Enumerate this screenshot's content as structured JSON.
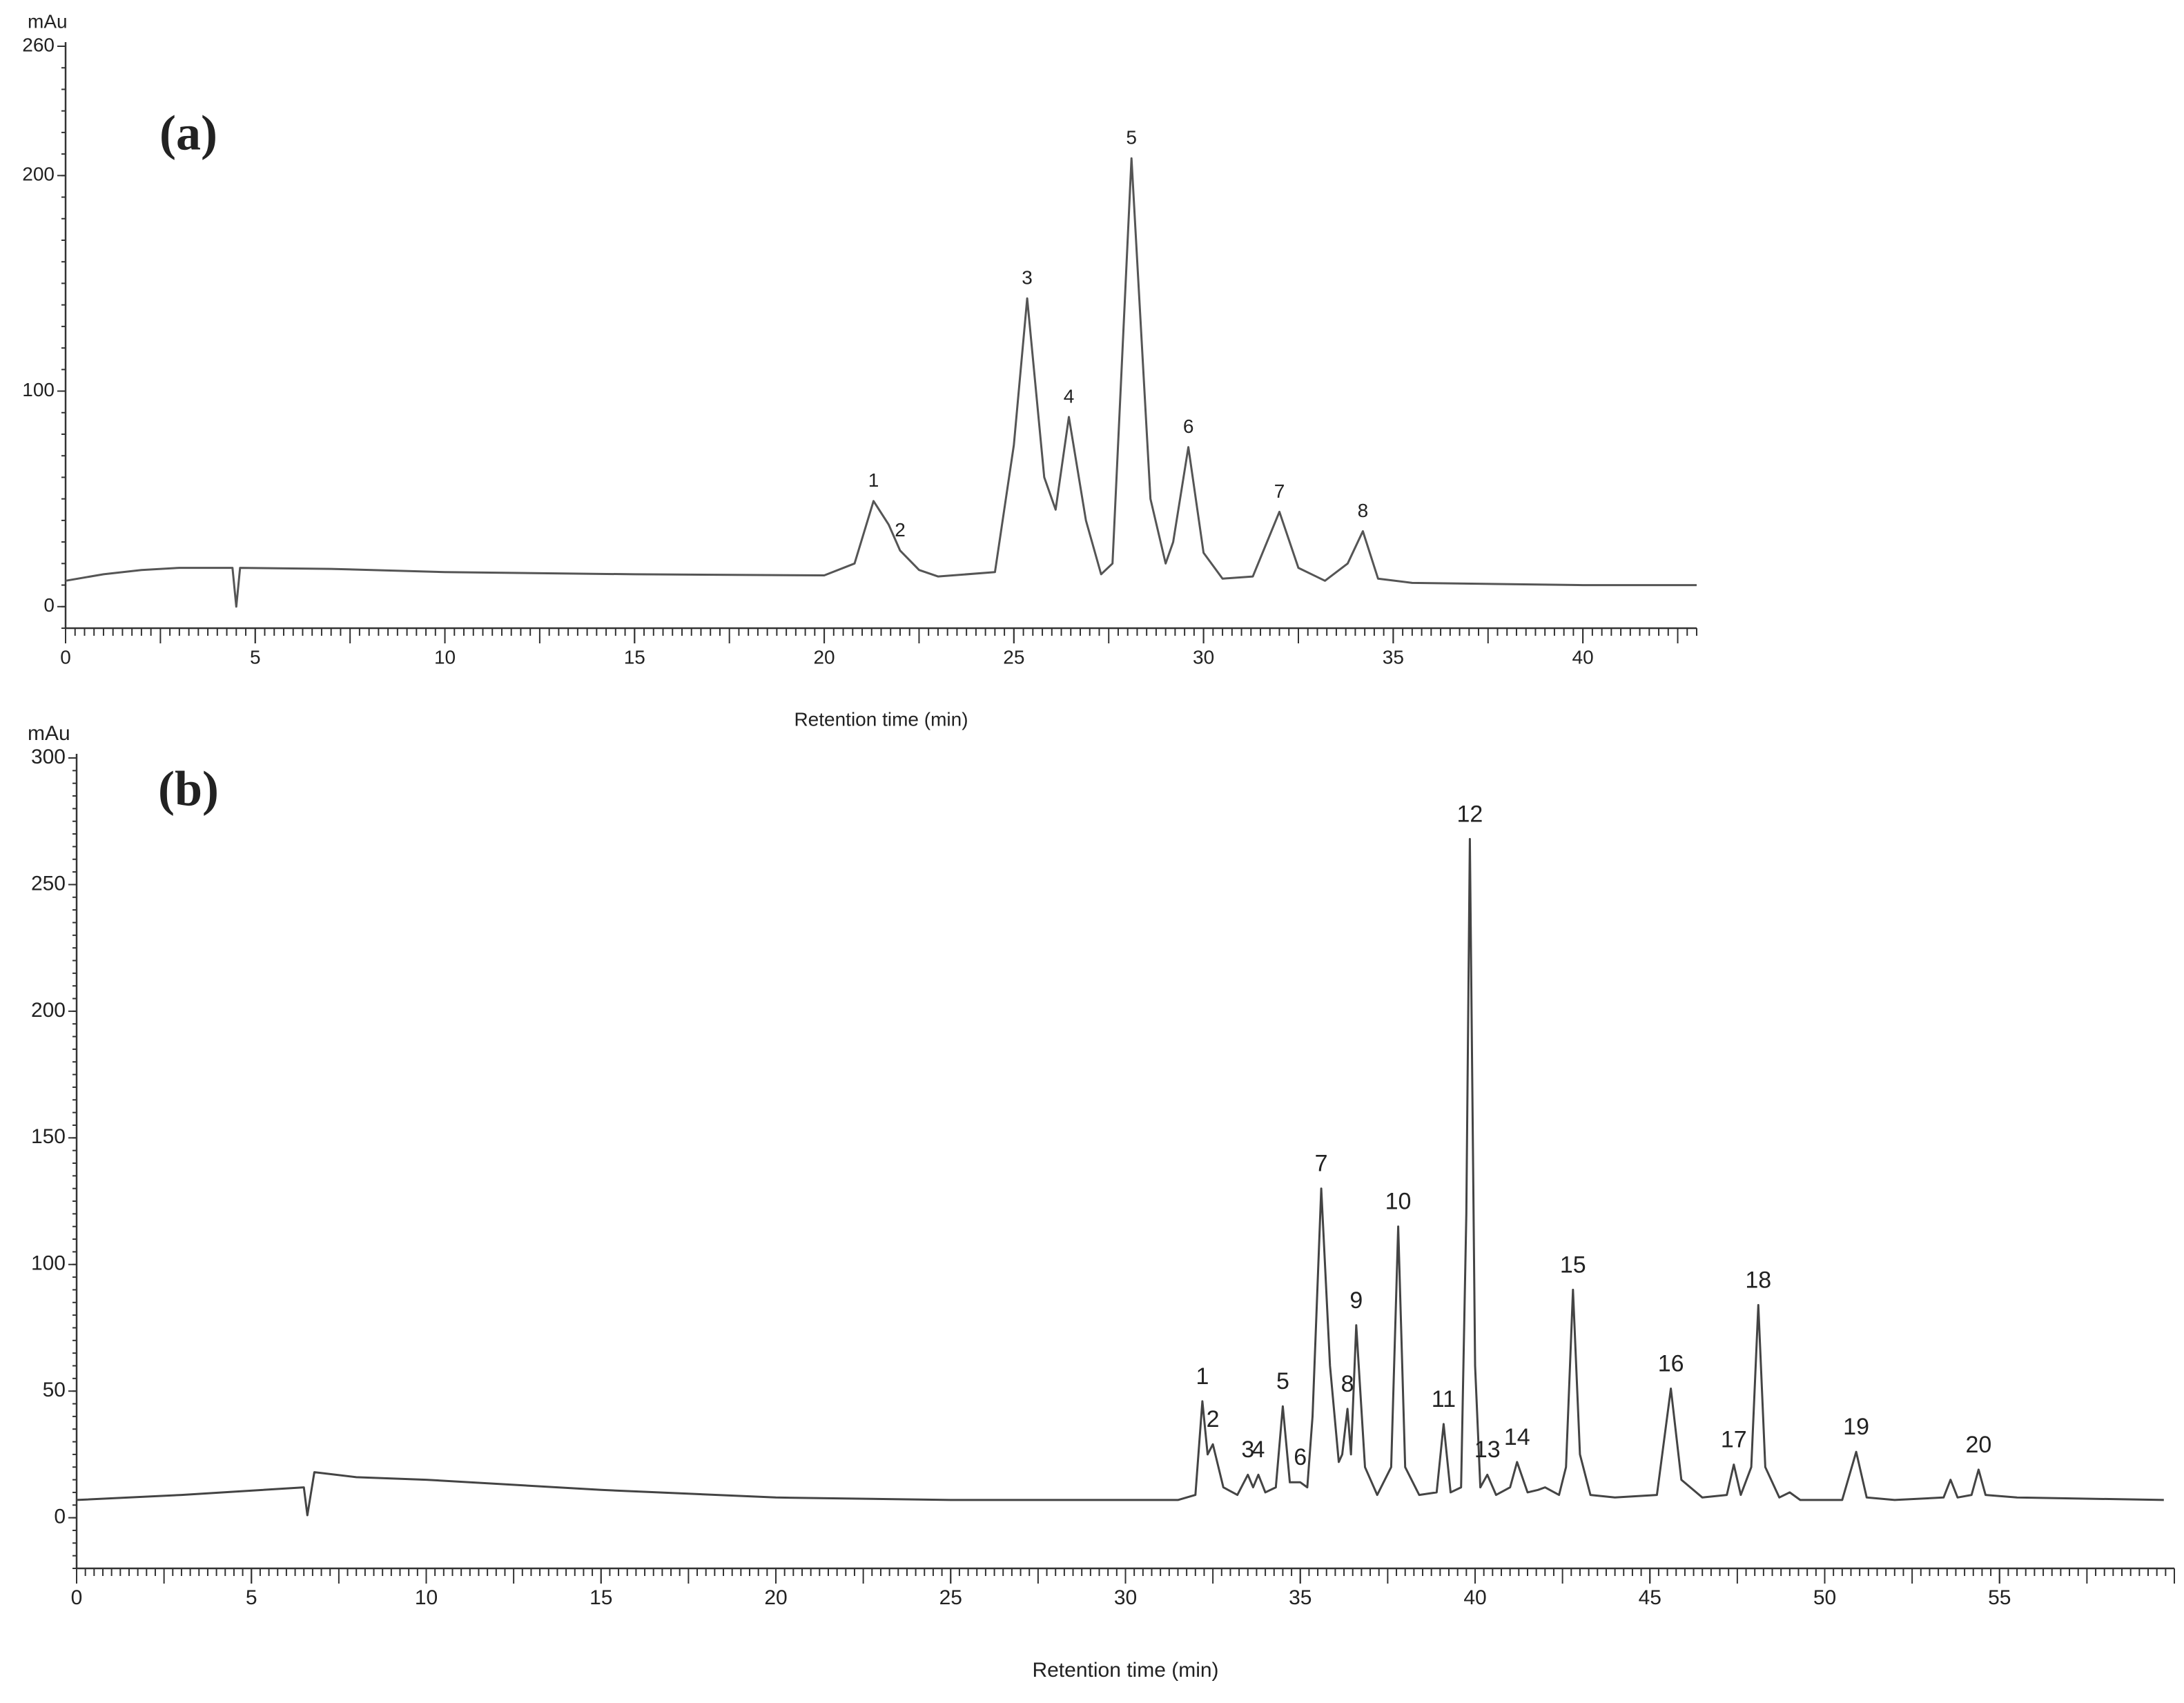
{
  "chart_data": [
    {
      "type": "line",
      "panel_label": "(a)",
      "y_label": "mAu",
      "x_label": "Retention time (min)",
      "color": "#555555",
      "xlim": [
        0,
        43
      ],
      "ylim": [
        -10,
        260
      ],
      "xticks": [
        0,
        5,
        10,
        15,
        20,
        25,
        30,
        35,
        40
      ],
      "yticks": [
        0,
        100,
        200,
        260
      ],
      "x": [
        0,
        1,
        2,
        3,
        4.4,
        4.5,
        4.6,
        7,
        10,
        15,
        20,
        20.8,
        21.3,
        21.7,
        22.0,
        22.5,
        23,
        24.5,
        25,
        25.35,
        25.8,
        26.1,
        26.45,
        26.9,
        27.3,
        27.6,
        28.1,
        28.6,
        29.0,
        29.2,
        29.6,
        30.0,
        30.5,
        31.3,
        32.0,
        32.5,
        33.2,
        33.8,
        34.2,
        34.6,
        35.5,
        40,
        43
      ],
      "values": [
        12,
        15,
        17,
        18,
        18,
        0,
        18,
        17.5,
        16,
        15,
        14.5,
        20,
        49,
        38,
        26,
        17,
        14,
        16,
        75,
        143,
        60,
        45,
        88,
        40,
        15,
        20,
        208,
        50,
        20,
        30,
        74,
        25,
        13,
        14,
        44,
        18,
        12,
        20,
        35,
        13,
        11,
        10,
        10
      ],
      "peaks": [
        {
          "label": "1",
          "x": 21.3
        },
        {
          "label": "2",
          "x": 22.0
        },
        {
          "label": "3",
          "x": 25.35
        },
        {
          "label": "4",
          "x": 26.45
        },
        {
          "label": "5",
          "x": 28.1
        },
        {
          "label": "6",
          "x": 29.6
        },
        {
          "label": "7",
          "x": 32.0
        },
        {
          "label": "8",
          "x": 34.2
        }
      ]
    },
    {
      "type": "line",
      "panel_label": "(b)",
      "y_label": "mAu",
      "x_label": "Retention time (min)",
      "color": "#444444",
      "xlim": [
        0,
        60
      ],
      "ylim": [
        -20,
        300
      ],
      "xticks": [
        0,
        5,
        10,
        15,
        20,
        25,
        30,
        35,
        40,
        45,
        50,
        55
      ],
      "yticks": [
        0,
        50,
        100,
        150,
        200,
        250,
        300
      ],
      "x": [
        0,
        3,
        6.5,
        6.6,
        6.8,
        8,
        10,
        15,
        20,
        25,
        30,
        31.5,
        32.0,
        32.2,
        32.35,
        32.5,
        32.8,
        33.2,
        33.5,
        33.65,
        33.8,
        34.0,
        34.3,
        34.5,
        34.7,
        35.0,
        35.2,
        35.35,
        35.6,
        35.85,
        36.1,
        36.2,
        36.35,
        36.45,
        36.6,
        36.85,
        37.2,
        37.6,
        37.8,
        38.0,
        38.4,
        38.9,
        39.1,
        39.3,
        39.6,
        39.75,
        39.85,
        40.0,
        40.15,
        40.35,
        40.6,
        41.0,
        41.2,
        41.5,
        41.8,
        42.0,
        42.4,
        42.6,
        42.8,
        43.0,
        43.3,
        44,
        45.2,
        45.6,
        45.9,
        46.5,
        47.2,
        47.4,
        47.6,
        47.9,
        48.1,
        48.3,
        48.7,
        49.0,
        49.3,
        50.5,
        50.9,
        51.2,
        52,
        53.4,
        53.6,
        53.8,
        54.2,
        54.4,
        54.6,
        55.5,
        59.7
      ],
      "values": [
        7,
        9,
        12,
        1,
        18,
        16,
        15,
        11,
        8,
        7,
        7,
        7,
        9,
        46,
        25,
        29,
        12,
        9,
        17,
        12,
        17,
        10,
        12,
        44,
        14,
        14,
        12,
        40,
        130,
        60,
        22,
        25,
        43,
        25,
        76,
        20,
        9,
        20,
        115,
        20,
        9,
        10,
        37,
        10,
        12,
        120,
        268,
        60,
        12,
        17,
        9,
        12,
        22,
        10,
        11,
        12,
        9,
        20,
        90,
        25,
        9,
        8,
        9,
        51,
        15,
        8,
        9,
        21,
        9,
        20,
        84,
        20,
        8,
        10,
        7,
        7,
        26,
        8,
        7,
        8,
        15,
        8,
        9,
        19,
        9,
        8,
        7
      ],
      "peaks": [
        {
          "label": "1",
          "x": 32.2
        },
        {
          "label": "2",
          "x": 32.5
        },
        {
          "label": "3",
          "x": 33.5
        },
        {
          "label": "4",
          "x": 33.8
        },
        {
          "label": "5",
          "x": 34.5
        },
        {
          "label": "6",
          "x": 35.0
        },
        {
          "label": "7",
          "x": 35.6
        },
        {
          "label": "8",
          "x": 36.35
        },
        {
          "label": "9",
          "x": 36.6
        },
        {
          "label": "10",
          "x": 37.8
        },
        {
          "label": "11",
          "x": 39.1
        },
        {
          "label": "12",
          "x": 39.85
        },
        {
          "label": "13",
          "x": 40.35
        },
        {
          "label": "14",
          "x": 41.2
        },
        {
          "label": "15",
          "x": 42.8
        },
        {
          "label": "16",
          "x": 45.6
        },
        {
          "label": "17",
          "x": 47.4
        },
        {
          "label": "18",
          "x": 48.1
        },
        {
          "label": "19",
          "x": 50.9
        },
        {
          "label": "20",
          "x": 54.4
        }
      ]
    }
  ]
}
